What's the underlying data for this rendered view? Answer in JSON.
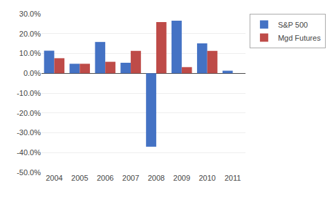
{
  "chart_data": {
    "type": "bar",
    "categories": [
      "2004",
      "2005",
      "2006",
      "2007",
      "2008",
      "2009",
      "2010",
      "2011"
    ],
    "series": [
      {
        "name": "S&P 500",
        "color": "#4472C4",
        "values": [
          0.114,
          0.048,
          0.158,
          0.053,
          -0.37,
          0.265,
          0.151,
          0.013
        ]
      },
      {
        "name": "Mgd Futures",
        "color": "#BE4B48",
        "values": [
          0.076,
          0.048,
          0.058,
          0.113,
          0.258,
          0.031,
          0.113,
          null
        ]
      }
    ],
    "ylim": [
      -0.5,
      0.3
    ],
    "yticks": [
      {
        "value": -0.5,
        "label": "-50.0%"
      },
      {
        "value": -0.4,
        "label": "-40.0%"
      },
      {
        "value": -0.3,
        "label": "-30.0%"
      },
      {
        "value": -0.2,
        "label": "-20.0%"
      },
      {
        "value": -0.1,
        "label": "-10.0%"
      },
      {
        "value": 0.0,
        "label": "0.0%"
      },
      {
        "value": 0.1,
        "label": "10.0%"
      },
      {
        "value": 0.2,
        "label": "20.0%"
      },
      {
        "value": 0.3,
        "label": "30.0%"
      }
    ],
    "grid": true,
    "legend": "upper right"
  }
}
